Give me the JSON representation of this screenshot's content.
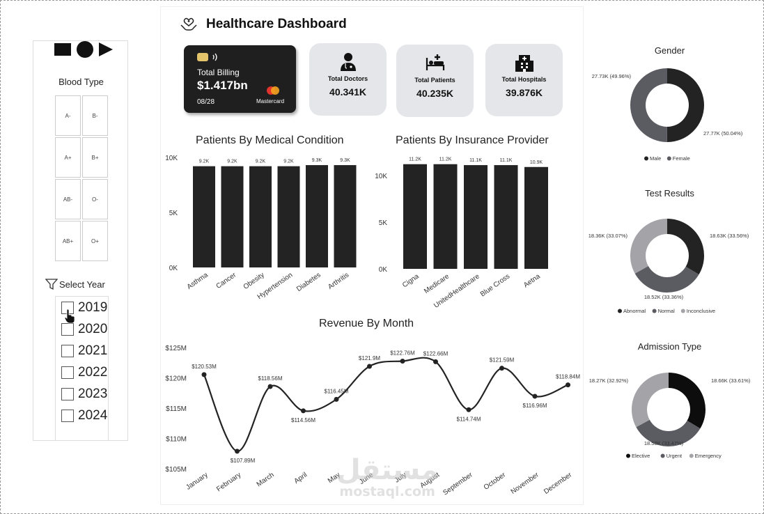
{
  "sidebar": {
    "blood_type_title": "Blood Type",
    "blood_types": [
      "A-",
      "B-",
      "A+",
      "B+",
      "AB-",
      "O-",
      "AB+",
      "O+"
    ],
    "year_title": "Select Year",
    "years": [
      "2019",
      "2020",
      "2021",
      "2022",
      "2023",
      "2024"
    ]
  },
  "header": {
    "title": "Healthcare Dashboard"
  },
  "billing": {
    "label": "Total Billing",
    "value": "$1.417bn",
    "date": "08/28",
    "card_brand": "Mastercard"
  },
  "kpis": [
    {
      "label": "Total Doctors",
      "value": "40.341K",
      "icon": "doctor-icon"
    },
    {
      "label": "Total Patients",
      "value": "40.235K",
      "icon": "patient-bed-icon"
    },
    {
      "label": "Total Hospitals",
      "value": "39.876K",
      "icon": "hospital-icon"
    }
  ],
  "colors": {
    "dark": "#232323",
    "mid": "#5b5b62",
    "light": "#a3a3a8",
    "kpi_bg": "#e5e6e9"
  },
  "chart_data": [
    {
      "type": "bar",
      "title": "Patients By Medical Condition",
      "categories": [
        "Asthma",
        "Cancer",
        "Obesity",
        "Hypertension",
        "Diabetes",
        "Arthritis"
      ],
      "values": [
        9200,
        9200,
        9200,
        9200,
        9300,
        9300
      ],
      "data_labels": [
        "9.2K",
        "9.2K",
        "9.2K",
        "9.2K",
        "9.3K",
        "9.3K"
      ],
      "yticks": [
        "0K",
        "5K",
        "10K"
      ],
      "ylim": [
        0,
        10000
      ]
    },
    {
      "type": "bar",
      "title": "Patients By Insurance Provider",
      "categories": [
        "Cigna",
        "Medicare",
        "UnitedHealthcare",
        "Blue Cross",
        "Aetna"
      ],
      "values": [
        11200,
        11200,
        11100,
        11100,
        10900
      ],
      "data_labels": [
        "11.2K",
        "11.2K",
        "11.1K",
        "11.1K",
        "10.9K"
      ],
      "yticks": [
        "0K",
        "5K",
        "10K"
      ],
      "ylim": [
        0,
        12000
      ]
    },
    {
      "type": "line",
      "title": "Revenue By Month",
      "categories": [
        "January",
        "February",
        "March",
        "April",
        "May",
        "June",
        "July",
        "August",
        "September",
        "October",
        "November",
        "December"
      ],
      "values": [
        120.53,
        107.89,
        118.56,
        114.56,
        116.45,
        121.9,
        122.76,
        122.66,
        114.74,
        121.59,
        116.96,
        118.84
      ],
      "data_labels": [
        "$120.53M",
        "$107.89M",
        "$118.56M",
        "$114.56M",
        "$116.45M",
        "$121.9M",
        "$122.76M",
        "$122.66M",
        "$114.74M",
        "$121.59M",
        "$116.96M",
        "$118.84M"
      ],
      "yticks": [
        "$105M",
        "$110M",
        "$115M",
        "$120M",
        "$125M"
      ],
      "ylim": [
        105,
        125
      ]
    },
    {
      "type": "pie",
      "title": "Gender",
      "slices": [
        {
          "name": "Male",
          "value": 27.77,
          "label": "27.77K (50.04%)",
          "color": "#232323"
        },
        {
          "name": "Female",
          "value": 27.73,
          "label": "27.73K (49.96%)",
          "color": "#5b5b62"
        }
      ]
    },
    {
      "type": "pie",
      "title": "Test Results",
      "slices": [
        {
          "name": "Abnormal",
          "value": 18.63,
          "label": "18.63K (33.56%)",
          "color": "#232323"
        },
        {
          "name": "Normal",
          "value": 18.52,
          "label": "18.52K (33.36%)",
          "color": "#5b5b62"
        },
        {
          "name": "Inconclusive",
          "value": 18.36,
          "label": "18.36K (33.07%)",
          "color": "#a3a3a8"
        }
      ]
    },
    {
      "type": "pie",
      "title": "Admission Type",
      "slices": [
        {
          "name": "Elective",
          "value": 18.66,
          "label": "18.66K (33.61%)",
          "color": "#0d0d0d"
        },
        {
          "name": "Urgent",
          "value": 18.58,
          "label": "18.58K (33.47%)",
          "color": "#5b5b62"
        },
        {
          "name": "Emergency",
          "value": 18.27,
          "label": "18.27K (32.92%)",
          "color": "#a3a3a8"
        }
      ]
    }
  ],
  "watermark": {
    "arabic": "مستقل",
    "latin": "mostaql.com"
  }
}
